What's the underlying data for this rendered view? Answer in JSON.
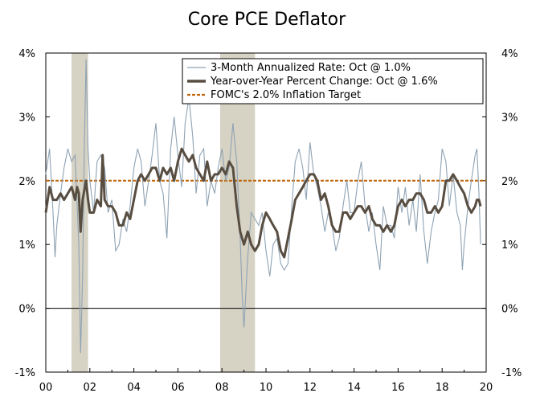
{
  "chart_data": {
    "type": "line",
    "title": "Core PCE Deflator",
    "xlabel": "",
    "ylabel": "",
    "x_range": [
      2000,
      2020
    ],
    "ylim": [
      -1,
      4
    ],
    "y_ticks": [
      -1,
      0,
      1,
      2,
      3,
      4
    ],
    "y_tick_labels": [
      "-1%",
      "0%",
      "1%",
      "2%",
      "3%",
      "4%"
    ],
    "x_ticks": [
      2000,
      2002,
      2004,
      2006,
      2008,
      2010,
      2012,
      2014,
      2016,
      2018,
      2020
    ],
    "x_tick_labels": [
      "00",
      "02",
      "04",
      "06",
      "08",
      "10",
      "12",
      "14",
      "16",
      "18",
      "20"
    ],
    "recessions": [
      {
        "start": 2001.17,
        "end": 2001.92
      },
      {
        "start": 2007.92,
        "end": 2009.5
      }
    ],
    "legend": {
      "placement": "top-right",
      "entries": [
        "3-Month Annualized Rate: Oct @ 1.0%",
        "Year-over-Year Percent Change: Oct @ 1.6%",
        "FOMC's 2.0% Inflation Target"
      ]
    },
    "target": {
      "name": "FOMC's 2.0% Inflation Target",
      "value": 2.0,
      "color": "#c0670e"
    },
    "colors": {
      "annualized": "#8fa3b4",
      "yoy": "#584d41",
      "recession": "#d6d2c4",
      "zero_line": "#000000"
    },
    "series": [
      {
        "name": "3-Month Annualized Rate: Oct @ 1.0%",
        "points": [
          [
            2000.0,
            2.1
          ],
          [
            2000.17,
            2.5
          ],
          [
            2000.33,
            1.5
          ],
          [
            2000.42,
            0.8
          ],
          [
            2000.5,
            1.3
          ],
          [
            2000.67,
            1.8
          ],
          [
            2000.83,
            2.2
          ],
          [
            2001.0,
            2.5
          ],
          [
            2001.17,
            2.3
          ],
          [
            2001.33,
            2.4
          ],
          [
            2001.5,
            1.0
          ],
          [
            2001.58,
            -0.7
          ],
          [
            2001.67,
            0.5
          ],
          [
            2001.75,
            2.5
          ],
          [
            2001.83,
            3.9
          ],
          [
            2001.92,
            2.5
          ],
          [
            2002.0,
            2.0
          ],
          [
            2002.17,
            1.5
          ],
          [
            2002.33,
            2.3
          ],
          [
            2002.5,
            2.4
          ],
          [
            2002.67,
            2.2
          ],
          [
            2002.83,
            1.5
          ],
          [
            2003.0,
            1.7
          ],
          [
            2003.17,
            0.9
          ],
          [
            2003.33,
            1.0
          ],
          [
            2003.5,
            1.4
          ],
          [
            2003.67,
            1.2
          ],
          [
            2003.83,
            1.6
          ],
          [
            2004.0,
            2.2
          ],
          [
            2004.17,
            2.5
          ],
          [
            2004.33,
            2.3
          ],
          [
            2004.5,
            1.6
          ],
          [
            2004.67,
            2.0
          ],
          [
            2004.83,
            2.4
          ],
          [
            2005.0,
            2.9
          ],
          [
            2005.17,
            2.0
          ],
          [
            2005.33,
            1.8
          ],
          [
            2005.5,
            1.1
          ],
          [
            2005.67,
            2.5
          ],
          [
            2005.83,
            3.0
          ],
          [
            2006.0,
            2.4
          ],
          [
            2006.17,
            1.9
          ],
          [
            2006.33,
            2.9
          ],
          [
            2006.5,
            3.3
          ],
          [
            2006.67,
            2.7
          ],
          [
            2006.83,
            1.8
          ],
          [
            2007.0,
            2.4
          ],
          [
            2007.17,
            2.5
          ],
          [
            2007.33,
            1.6
          ],
          [
            2007.5,
            2.0
          ],
          [
            2007.67,
            1.8
          ],
          [
            2007.83,
            2.2
          ],
          [
            2008.0,
            2.5
          ],
          [
            2008.17,
            2.0
          ],
          [
            2008.33,
            2.2
          ],
          [
            2008.5,
            2.9
          ],
          [
            2008.67,
            2.3
          ],
          [
            2008.83,
            1.1
          ],
          [
            2008.92,
            0.2
          ],
          [
            2009.0,
            -0.3
          ],
          [
            2009.17,
            0.8
          ],
          [
            2009.33,
            1.5
          ],
          [
            2009.5,
            1.4
          ],
          [
            2009.67,
            1.3
          ],
          [
            2009.83,
            1.5
          ],
          [
            2010.0,
            0.9
          ],
          [
            2010.17,
            0.5
          ],
          [
            2010.33,
            1.0
          ],
          [
            2010.5,
            1.1
          ],
          [
            2010.67,
            0.7
          ],
          [
            2010.83,
            0.6
          ],
          [
            2011.0,
            0.7
          ],
          [
            2011.17,
            1.6
          ],
          [
            2011.33,
            2.3
          ],
          [
            2011.5,
            2.5
          ],
          [
            2011.67,
            2.2
          ],
          [
            2011.83,
            1.7
          ],
          [
            2012.0,
            2.6
          ],
          [
            2012.17,
            2.1
          ],
          [
            2012.33,
            1.9
          ],
          [
            2012.5,
            1.6
          ],
          [
            2012.67,
            1.2
          ],
          [
            2012.83,
            1.5
          ],
          [
            2013.0,
            1.3
          ],
          [
            2013.17,
            0.9
          ],
          [
            2013.33,
            1.1
          ],
          [
            2013.5,
            1.6
          ],
          [
            2013.67,
            2.0
          ],
          [
            2013.83,
            1.5
          ],
          [
            2014.0,
            1.5
          ],
          [
            2014.17,
            2.0
          ],
          [
            2014.33,
            2.3
          ],
          [
            2014.5,
            1.6
          ],
          [
            2014.67,
            1.2
          ],
          [
            2014.83,
            1.5
          ],
          [
            2015.0,
            1.0
          ],
          [
            2015.17,
            0.6
          ],
          [
            2015.33,
            1.6
          ],
          [
            2015.5,
            1.3
          ],
          [
            2015.67,
            1.3
          ],
          [
            2015.83,
            1.1
          ],
          [
            2016.0,
            1.9
          ],
          [
            2016.17,
            1.5
          ],
          [
            2016.33,
            1.9
          ],
          [
            2016.5,
            1.3
          ],
          [
            2016.67,
            1.7
          ],
          [
            2016.83,
            1.2
          ],
          [
            2017.0,
            2.1
          ],
          [
            2017.17,
            1.2
          ],
          [
            2017.33,
            0.7
          ],
          [
            2017.5,
            1.2
          ],
          [
            2017.67,
            1.5
          ],
          [
            2017.83,
            1.7
          ],
          [
            2018.0,
            2.5
          ],
          [
            2018.17,
            2.3
          ],
          [
            2018.33,
            1.6
          ],
          [
            2018.5,
            2.1
          ],
          [
            2018.67,
            1.5
          ],
          [
            2018.83,
            1.3
          ],
          [
            2018.92,
            0.6
          ],
          [
            2019.0,
            1.0
          ],
          [
            2019.17,
            1.6
          ],
          [
            2019.33,
            2.0
          ],
          [
            2019.5,
            2.4
          ],
          [
            2019.58,
            2.5
          ],
          [
            2019.67,
            1.8
          ],
          [
            2019.75,
            1.0
          ]
        ]
      },
      {
        "name": "Year-over-Year Percent Change: Oct @ 1.6%",
        "points": [
          [
            2000.0,
            1.5
          ],
          [
            2000.17,
            1.9
          ],
          [
            2000.33,
            1.7
          ],
          [
            2000.5,
            1.7
          ],
          [
            2000.67,
            1.8
          ],
          [
            2000.83,
            1.7
          ],
          [
            2001.0,
            1.8
          ],
          [
            2001.17,
            1.9
          ],
          [
            2001.33,
            1.7
          ],
          [
            2001.42,
            1.9
          ],
          [
            2001.5,
            1.8
          ],
          [
            2001.58,
            1.2
          ],
          [
            2001.67,
            1.7
          ],
          [
            2001.83,
            2.0
          ],
          [
            2001.92,
            1.7
          ],
          [
            2002.0,
            1.5
          ],
          [
            2002.17,
            1.5
          ],
          [
            2002.33,
            1.7
          ],
          [
            2002.5,
            1.6
          ],
          [
            2002.58,
            2.4
          ],
          [
            2002.67,
            1.7
          ],
          [
            2002.83,
            1.6
          ],
          [
            2003.0,
            1.6
          ],
          [
            2003.17,
            1.5
          ],
          [
            2003.33,
            1.3
          ],
          [
            2003.5,
            1.3
          ],
          [
            2003.67,
            1.5
          ],
          [
            2003.83,
            1.4
          ],
          [
            2004.0,
            1.7
          ],
          [
            2004.17,
            2.0
          ],
          [
            2004.33,
            2.1
          ],
          [
            2004.5,
            2.0
          ],
          [
            2004.67,
            2.1
          ],
          [
            2004.83,
            2.2
          ],
          [
            2005.0,
            2.2
          ],
          [
            2005.17,
            2.0
          ],
          [
            2005.33,
            2.2
          ],
          [
            2005.5,
            2.1
          ],
          [
            2005.67,
            2.2
          ],
          [
            2005.83,
            2.0
          ],
          [
            2006.0,
            2.3
          ],
          [
            2006.17,
            2.5
          ],
          [
            2006.33,
            2.4
          ],
          [
            2006.5,
            2.3
          ],
          [
            2006.67,
            2.4
          ],
          [
            2006.83,
            2.2
          ],
          [
            2007.0,
            2.1
          ],
          [
            2007.17,
            2.0
          ],
          [
            2007.33,
            2.3
          ],
          [
            2007.5,
            2.0
          ],
          [
            2007.67,
            2.1
          ],
          [
            2007.83,
            2.1
          ],
          [
            2008.0,
            2.2
          ],
          [
            2008.17,
            2.1
          ],
          [
            2008.33,
            2.3
          ],
          [
            2008.5,
            2.2
          ],
          [
            2008.67,
            1.6
          ],
          [
            2008.83,
            1.2
          ],
          [
            2009.0,
            1.0
          ],
          [
            2009.17,
            1.2
          ],
          [
            2009.33,
            1.0
          ],
          [
            2009.5,
            0.9
          ],
          [
            2009.67,
            1.0
          ],
          [
            2009.83,
            1.3
          ],
          [
            2010.0,
            1.5
          ],
          [
            2010.17,
            1.4
          ],
          [
            2010.33,
            1.3
          ],
          [
            2010.5,
            1.2
          ],
          [
            2010.67,
            0.9
          ],
          [
            2010.83,
            0.8
          ],
          [
            2011.0,
            1.1
          ],
          [
            2011.17,
            1.4
          ],
          [
            2011.33,
            1.7
          ],
          [
            2011.5,
            1.8
          ],
          [
            2011.67,
            1.9
          ],
          [
            2011.83,
            2.0
          ],
          [
            2012.0,
            2.1
          ],
          [
            2012.17,
            2.1
          ],
          [
            2012.33,
            2.0
          ],
          [
            2012.5,
            1.7
          ],
          [
            2012.67,
            1.8
          ],
          [
            2012.83,
            1.6
          ],
          [
            2013.0,
            1.3
          ],
          [
            2013.17,
            1.2
          ],
          [
            2013.33,
            1.2
          ],
          [
            2013.5,
            1.5
          ],
          [
            2013.67,
            1.5
          ],
          [
            2013.83,
            1.4
          ],
          [
            2014.0,
            1.5
          ],
          [
            2014.17,
            1.6
          ],
          [
            2014.33,
            1.6
          ],
          [
            2014.5,
            1.5
          ],
          [
            2014.67,
            1.6
          ],
          [
            2014.83,
            1.4
          ],
          [
            2015.0,
            1.3
          ],
          [
            2015.17,
            1.3
          ],
          [
            2015.33,
            1.2
          ],
          [
            2015.5,
            1.3
          ],
          [
            2015.67,
            1.2
          ],
          [
            2015.83,
            1.3
          ],
          [
            2016.0,
            1.6
          ],
          [
            2016.17,
            1.7
          ],
          [
            2016.33,
            1.6
          ],
          [
            2016.5,
            1.7
          ],
          [
            2016.67,
            1.7
          ],
          [
            2016.83,
            1.8
          ],
          [
            2017.0,
            1.8
          ],
          [
            2017.17,
            1.7
          ],
          [
            2017.33,
            1.5
          ],
          [
            2017.5,
            1.5
          ],
          [
            2017.67,
            1.6
          ],
          [
            2017.83,
            1.5
          ],
          [
            2018.0,
            1.6
          ],
          [
            2018.17,
            2.0
          ],
          [
            2018.33,
            2.0
          ],
          [
            2018.5,
            2.1
          ],
          [
            2018.67,
            2.0
          ],
          [
            2018.83,
            1.9
          ],
          [
            2019.0,
            1.8
          ],
          [
            2019.17,
            1.6
          ],
          [
            2019.33,
            1.5
          ],
          [
            2019.5,
            1.6
          ],
          [
            2019.58,
            1.7
          ],
          [
            2019.67,
            1.7
          ],
          [
            2019.75,
            1.6
          ]
        ]
      }
    ]
  }
}
